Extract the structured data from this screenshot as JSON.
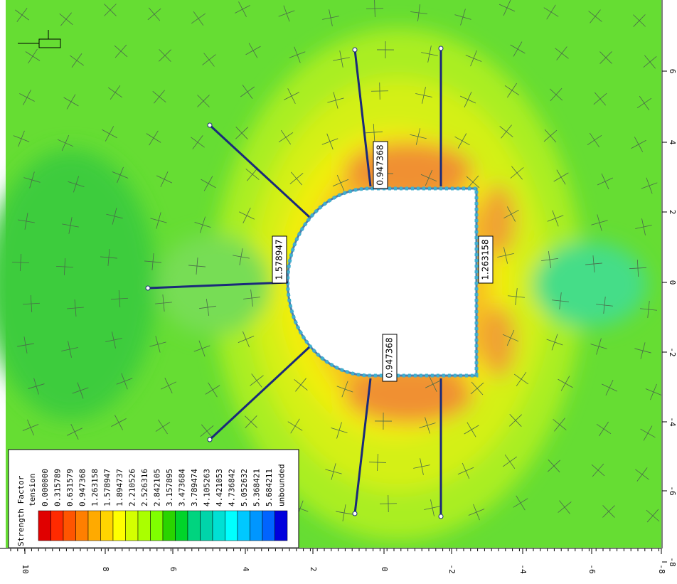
{
  "legend": {
    "title": "Strength Factor",
    "subtitle": "tension",
    "items": [
      "0.000000",
      "0.315789",
      "0.631579",
      "0.947368",
      "1.263158",
      "1.578947",
      "1.894737",
      "2.210526",
      "2.526316",
      "2.842105",
      "3.157895",
      "3.473684",
      "3.789474",
      "4.105263",
      "4.421053",
      "4.736842",
      "5.052632",
      "5.368421",
      "5.684211",
      "unbounded"
    ]
  },
  "x_axis": {
    "ticks": [
      "10",
      "8",
      "6",
      "4",
      "2",
      "0",
      "-2",
      "-4",
      "-6",
      "-8"
    ]
  },
  "y_axis": {
    "ticks": [
      "6",
      "4",
      "2",
      "0",
      "-2",
      "-4",
      "-6",
      "-8"
    ]
  },
  "labels": [
    "0.947368",
    "1.578947",
    "1.263158",
    "0.947368"
  ]
}
